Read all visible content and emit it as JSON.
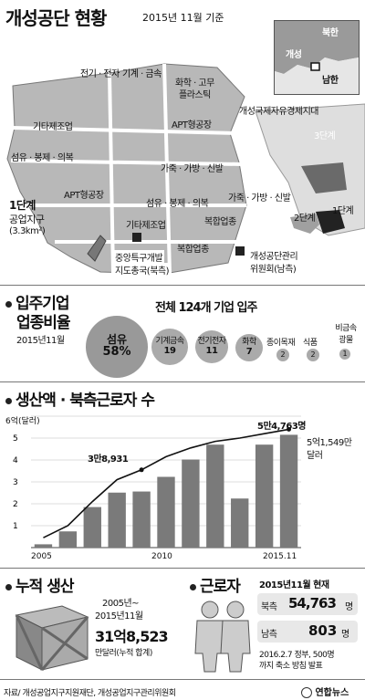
{
  "header": {
    "title": "개성공단 현황",
    "date": "2015년 11월 기준"
  },
  "inset_map": {
    "north": "북한",
    "kaesong": "개성",
    "south": "남한"
  },
  "complex_map": {
    "labels": [
      "전기 · 전자",
      "기계 · 금속",
      "화학 · 고무",
      "플라스틱",
      "기타제조업",
      "APT형공장",
      "섬유 · 봉제 · 의복",
      "가죽 · 가방 · 신발",
      "APT형공장",
      "섬유 · 봉제 · 의복",
      "가죽 · 가방 · 신발",
      "기타제조업",
      "복합업종",
      "복합업종"
    ],
    "phase1_title": "1단계",
    "phase1_sub": "공업지구",
    "phase1_area": "(3.3km²)",
    "dev_office": "중앙특구개발",
    "dev_office2": "지도총국(북측)",
    "committee": "개성공단관리",
    "committee2": "위원회(남측)",
    "free_zone": "개성국제자유경제지대",
    "stage2": "2단계",
    "stage3": "3단계",
    "stage1": "1단계"
  },
  "companies": {
    "title_line1": "입주기업",
    "title_line2": "업종비율",
    "date": "2015년11월",
    "total": "전체 124개 기업 입주",
    "items": [
      {
        "name": "섬유",
        "count": "58%"
      },
      {
        "name": "기계금속",
        "count": "19"
      },
      {
        "name": "전기전자",
        "count": "11"
      },
      {
        "name": "화학",
        "count": "7"
      },
      {
        "name": "종이목재",
        "count": "2"
      },
      {
        "name": "식품",
        "count": "2"
      },
      {
        "name": "비금속 광물",
        "count": "1"
      }
    ]
  },
  "production": {
    "title": "생산액 · 북측근로자 수",
    "y_unit": "6억(달러)",
    "peak_label": "5만4,763명",
    "early_label": "3만8,931",
    "latest_label": "5억1,549만",
    "latest_unit": "달러",
    "x_ticks": [
      "2005",
      "2010",
      "2015.11"
    ]
  },
  "chart_data": {
    "type": "bar",
    "categories": [
      "2005",
      "2006",
      "2007",
      "2008",
      "2009",
      "2010",
      "2011",
      "2012",
      "2013",
      "2014",
      "2015.11"
    ],
    "values": [
      0.15,
      0.74,
      1.85,
      2.51,
      2.56,
      3.23,
      4.02,
      4.7,
      2.24,
      4.7,
      5.15
    ],
    "ylim": [
      0,
      6
    ],
    "y_ticks": [
      "1",
      "2",
      "3",
      "4",
      "5",
      "6억(달러)"
    ],
    "line": {
      "name": "북측근로자 수",
      "values": [
        0.45,
        1.0,
        2.1,
        3.1,
        3.55,
        4.15,
        4.55,
        4.85,
        5.0,
        5.2,
        5.4
      ]
    },
    "title": "생산액 · 북측근로자 수"
  },
  "cumulative": {
    "title": "누적 생산",
    "period": "2005년~",
    "period2": "2015년11월",
    "amount": "31억8,523",
    "unit": "만달러(누적 합계)"
  },
  "workers": {
    "title": "근로자",
    "date": "2015년11월 현재",
    "north_label": "북측",
    "north_value": "54,763",
    "north_unit": "명",
    "south_label": "남측",
    "south_value": "803",
    "south_unit": "명",
    "note": "2016.2.7 정부, 500명",
    "note2": "까지 축소 방침 발표"
  },
  "footer": {
    "source": "자료/ 개성공업지구지원재단, 개성공업지구관리위원회",
    "brand": "연합뉴스"
  }
}
